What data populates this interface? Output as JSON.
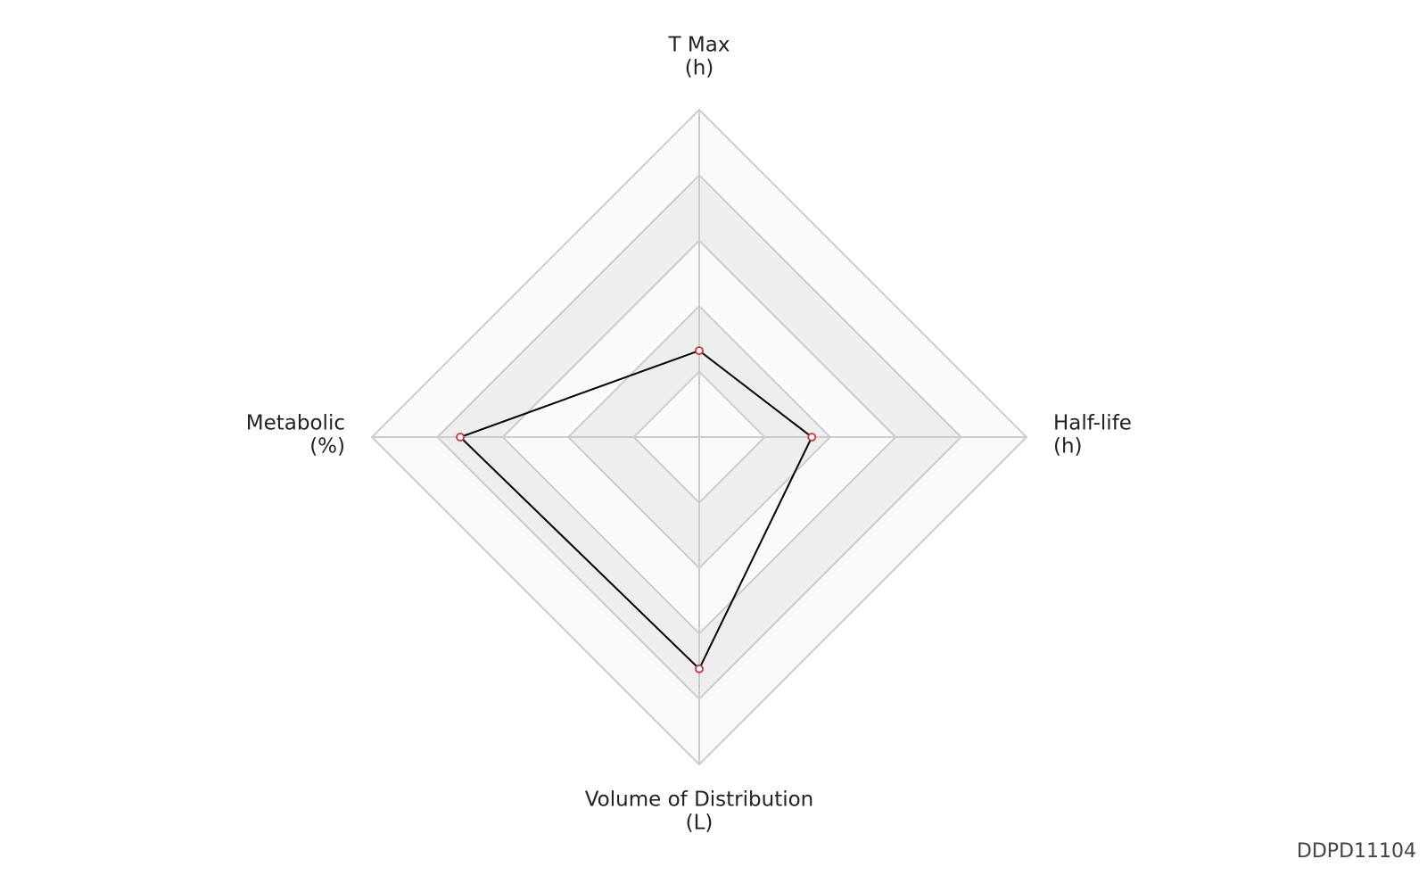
{
  "chart_data": {
    "type": "radar",
    "axes": [
      {
        "name": "T Max",
        "unit": "(h)"
      },
      {
        "name": "Half-life",
        "unit": "(h)"
      },
      {
        "name": "Volume of Distribution",
        "unit": "(L)"
      },
      {
        "name": "Metabolic",
        "unit": "(%)"
      }
    ],
    "values": [
      1.32,
      1.72,
      3.54,
      3.65
    ],
    "color": "#000000",
    "marker_color": "#cc3333",
    "rlim": [
      0,
      5
    ],
    "rticks": [
      1,
      2,
      3,
      4,
      5
    ],
    "band_colors": [
      "#fafafa",
      "#eeeeee"
    ],
    "watermark": "DDPD11104"
  }
}
